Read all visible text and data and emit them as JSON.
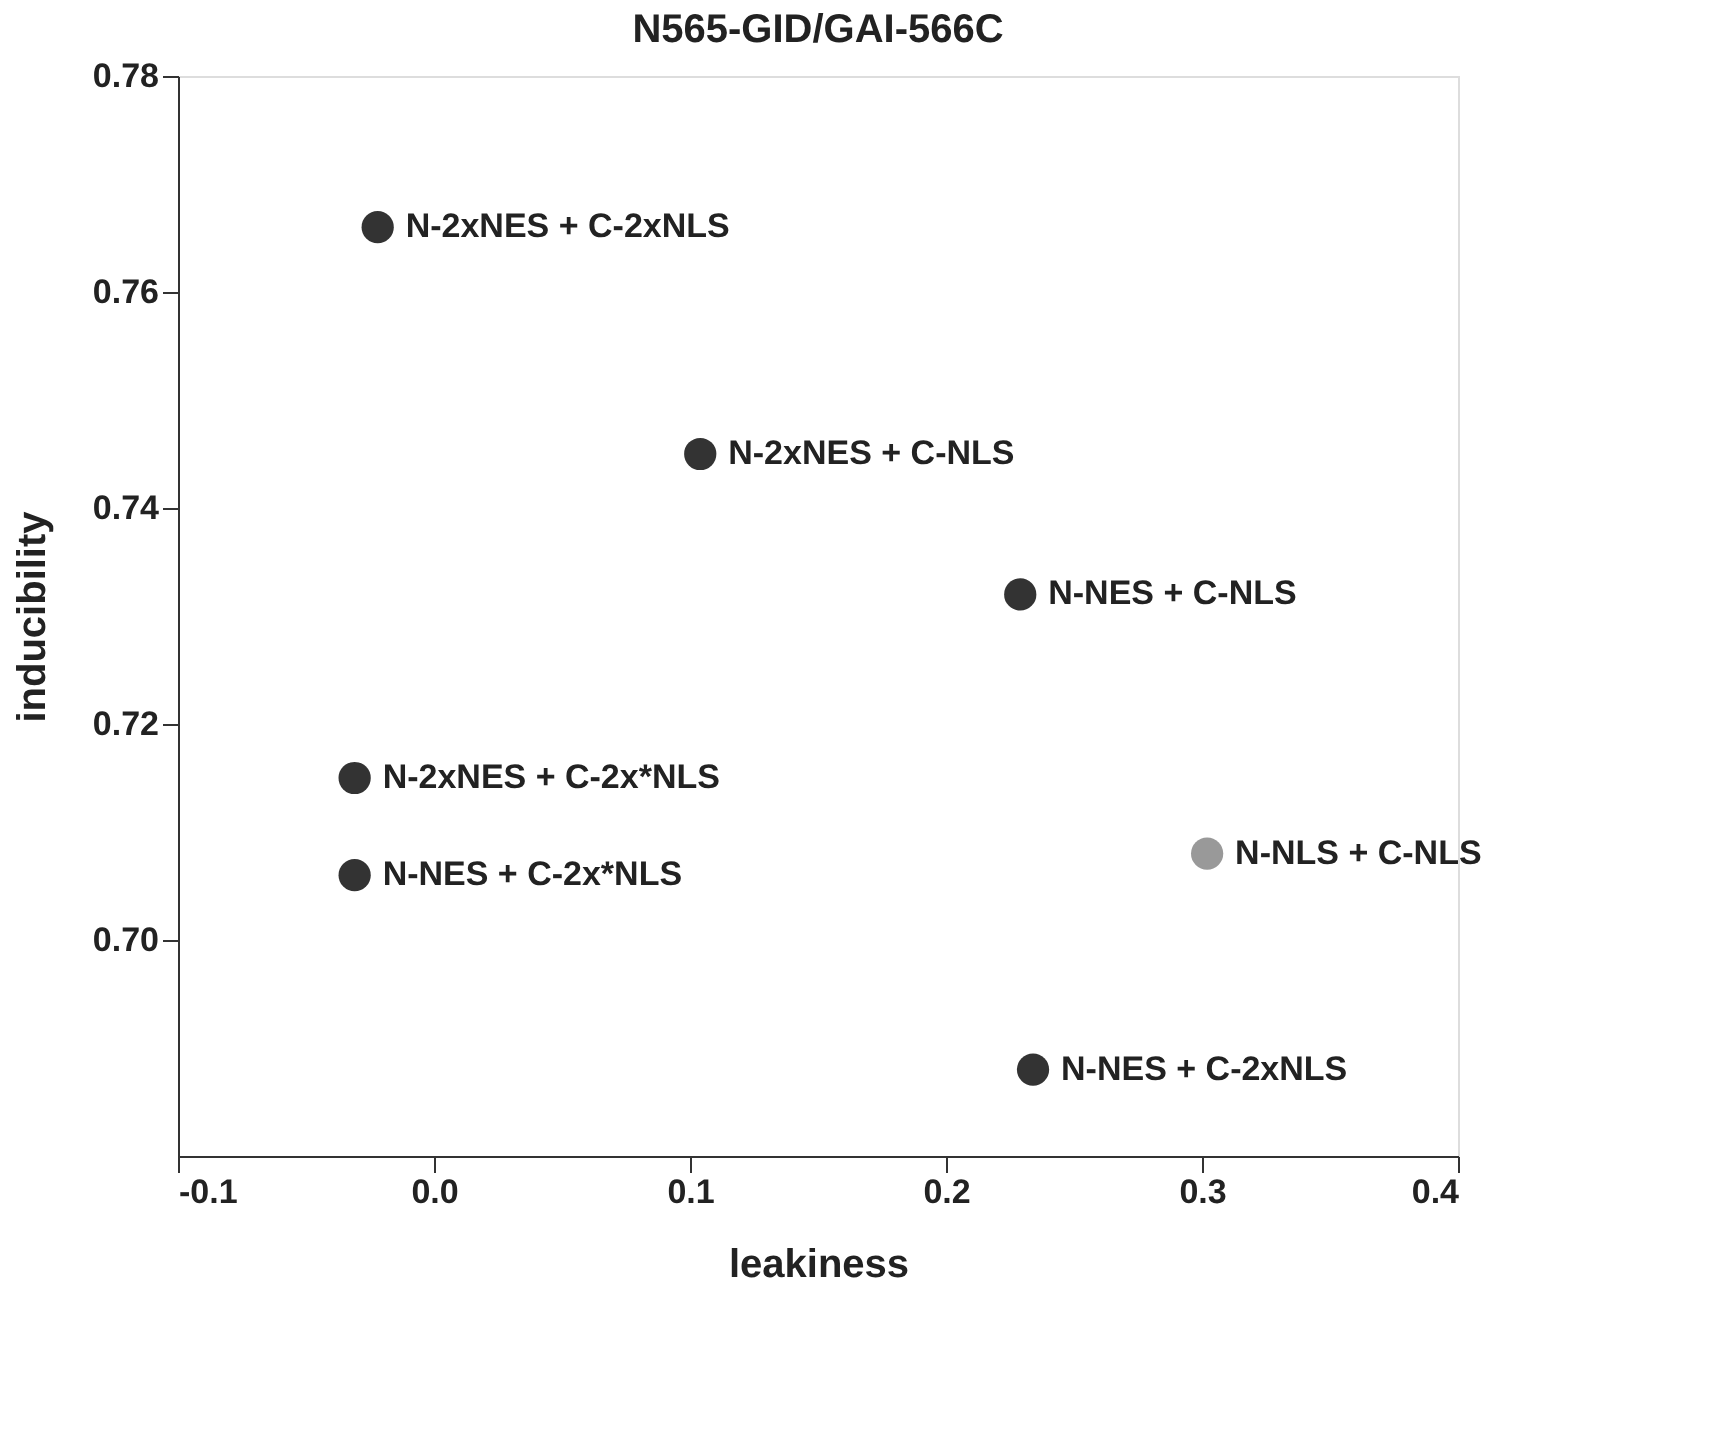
{
  "chart_data": {
    "type": "scatter",
    "title": "N565-GID/GAI-566C",
    "xlabel": "leakiness",
    "ylabel": "inducibility",
    "x": [
      -0.022,
      0.104,
      0.229,
      -0.031,
      -0.031,
      0.302,
      0.234
    ],
    "values": [
      0.766,
      0.745,
      0.732,
      0.715,
      0.706,
      0.708,
      0.688
    ],
    "colors": [
      "#333333",
      "#333333",
      "#333333",
      "#333333",
      "#333333",
      "#999999",
      "#333333"
    ],
    "annotations": [
      {
        "text": "N-2xNES + C-2xNLS",
        "x": -0.022,
        "y": 0.766
      },
      {
        "text": "N-2xNES + C-NLS",
        "x": 0.104,
        "y": 0.745
      },
      {
        "text": "N-NES + C-NLS",
        "x": 0.229,
        "y": 0.732
      },
      {
        "text": "N-2xNES + C-2x*NLS",
        "x": -0.031,
        "y": 0.715
      },
      {
        "text": "N-NES + C-2x*NLS",
        "x": -0.031,
        "y": 0.706
      },
      {
        "text": "N-NLS + C-NLS",
        "x": 0.302,
        "y": 0.708
      },
      {
        "text": "N-NES + C-2xNLS",
        "x": 0.234,
        "y": 0.688
      }
    ],
    "xlim": [
      -0.1,
      0.4
    ],
    "xticks": [
      -0.1,
      {
        "value": 0,
        "label": "0.0"
      },
      0.1,
      0.2,
      0.3,
      0.4
    ],
    "ylim": [
      0.68,
      0.78
    ],
    "yticks": [
      {
        "value": 0.7,
        "label": "0.70"
      },
      {
        "value": 0.72,
        "label": "0.72"
      },
      {
        "value": 0.74,
        "label": "0.74"
      },
      {
        "value": 0.76,
        "label": "0.76"
      },
      {
        "value": 0.78,
        "label": "0.78"
      }
    ],
    "marker": "circle",
    "grid": false,
    "legend": false
  }
}
